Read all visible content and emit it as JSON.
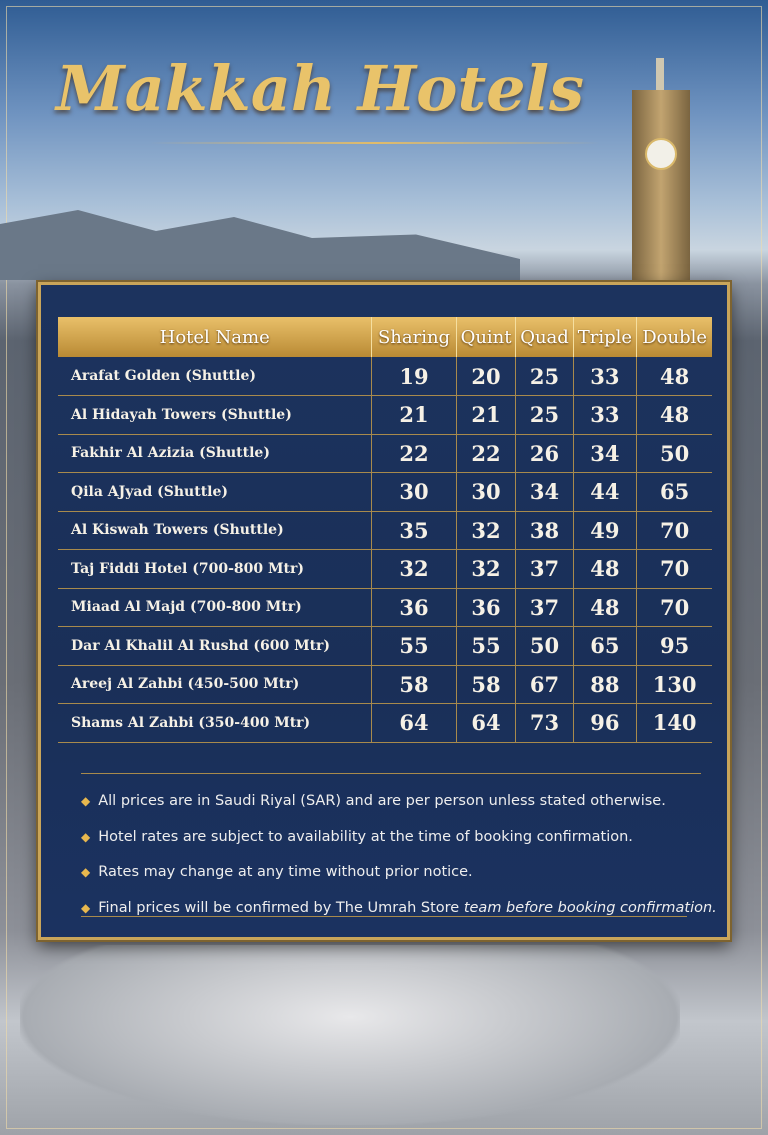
{
  "title": "Makkah Hotels",
  "table": {
    "headers": [
      "Hotel Name",
      "Sharing",
      "Quint",
      "Quad",
      "Triple",
      "Double"
    ],
    "rows": [
      {
        "name": "Arafat Golden (Shuttle)",
        "values": [
          19,
          20,
          25,
          33,
          48
        ]
      },
      {
        "name": "Al Hidayah Towers (Shuttle)",
        "values": [
          21,
          21,
          25,
          33,
          48
        ]
      },
      {
        "name": "Fakhir Al Azizia (Shuttle)",
        "values": [
          22,
          22,
          26,
          34,
          50
        ]
      },
      {
        "name": "Qila AJyad (Shuttle)",
        "values": [
          30,
          30,
          34,
          44,
          65
        ]
      },
      {
        "name": "Al Kiswah Towers (Shuttle)",
        "values": [
          35,
          32,
          38,
          49,
          70
        ]
      },
      {
        "name": "Taj Fiddi Hotel (700-800 Mtr)",
        "values": [
          32,
          32,
          37,
          48,
          70
        ]
      },
      {
        "name": "Miaad Al Majd (700-800 Mtr)",
        "values": [
          36,
          36,
          37,
          48,
          70
        ]
      },
      {
        "name": "Dar Al Khalil Al Rushd (600 Mtr)",
        "values": [
          55,
          55,
          50,
          65,
          95
        ]
      },
      {
        "name": "Areej Al Zahbi (450-500 Mtr)",
        "values": [
          58,
          58,
          67,
          88,
          130
        ]
      },
      {
        "name": "Shams Al Zahbi (350-400 Mtr)",
        "values": [
          64,
          64,
          73,
          96,
          140
        ]
      }
    ]
  },
  "notes": [
    {
      "text": "All prices are in Saudi Riyal (SAR) and are per person unless stated otherwise."
    },
    {
      "text": "Hotel rates are subject to availability at the time of booking confirmation."
    },
    {
      "text": "Rates may change at any time without prior notice."
    },
    {
      "text": "Final prices will be confirmed by The Umrah Store ",
      "italic": "team before booking confirmation."
    }
  ],
  "colors": {
    "gold": "#c9a55a",
    "panel": "#1c335e"
  }
}
